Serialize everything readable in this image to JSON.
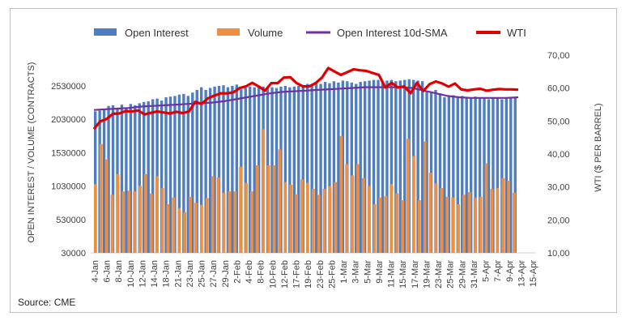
{
  "chart_data": {
    "type": "bar",
    "source": "Source: CME",
    "ylabel_left": "OPEN INTEREST / VOLUME (CONTRACTS)",
    "ylabel_right": "WTI ($ PER BARREL)",
    "left_ticks": [
      "30000",
      "530000",
      "1030000",
      "1530000",
      "2030000",
      "2530000"
    ],
    "left_range": [
      30000,
      2530000
    ],
    "right_ticks": [
      "10,00",
      "20,00",
      "30,00",
      "40,00",
      "50,00",
      "60,00",
      "70,00"
    ],
    "right_range": [
      10,
      70
    ],
    "x_tick_labels": [
      "4-Jan",
      "6-Jan",
      "8-Jan",
      "10-Jan",
      "12-Jan",
      "14-Jan",
      "18-Jan",
      "21-Jan",
      "23-Jan",
      "25-Jan",
      "27-Jan",
      "29-Jan",
      "2-Feb",
      "4-Feb",
      "8-Feb",
      "10-Feb",
      "12-Feb",
      "17-Feb",
      "19-Feb",
      "23-Feb",
      "25-Feb",
      "1-Mar",
      "3-Mar",
      "5-Mar",
      "9-Mar",
      "11-Mar",
      "15-Mar",
      "17-Mar",
      "19-Mar",
      "23-Mar",
      "25-Mar",
      "29-Mar",
      "31-Mar",
      "5-Apr",
      "7-Apr",
      "9-Apr",
      "13-Apr",
      "15-Apr"
    ],
    "legend": [
      {
        "name": "Open Interest",
        "color": "#4e7ec1",
        "marker": "bar"
      },
      {
        "name": "Volume",
        "color": "#ed8f43",
        "marker": "bar"
      },
      {
        "name": "Open Interest 10d-SMA",
        "color": "#7030a0",
        "marker": "line"
      },
      {
        "name": "WTI",
        "color": "#e00000",
        "marker": "line"
      }
    ],
    "series": [
      {
        "name": "Open Interest",
        "color": "#4e7ec1",
        "values": [
          2150000,
          2160000,
          2180000,
          2230000,
          2240000,
          2200000,
          2250000,
          2200000,
          2260000,
          2240000,
          2270000,
          2290000,
          2300000,
          2330000,
          2340000,
          2310000,
          2360000,
          2370000,
          2380000,
          2400000,
          2410000,
          2380000,
          2430000,
          2470000,
          2510000,
          2470000,
          2500000,
          2520000,
          2530000,
          2540000,
          2510000,
          2530000,
          2550000,
          2480000,
          2500000,
          2520000,
          2510000,
          2530000,
          2520000,
          2500000,
          2510000,
          2500000,
          2520000,
          2530000,
          2510000,
          2520000,
          2530000,
          2540000,
          2560000,
          2550000,
          2580000,
          2560000,
          2590000,
          2570000,
          2600000,
          2580000,
          2610000,
          2600000,
          2580000,
          2560000,
          2590000,
          2600000,
          2610000,
          2620000,
          2620000,
          2600000,
          2610000,
          2620000,
          2600000,
          2610000,
          2620000,
          2630000,
          2620000,
          2610000,
          2600000,
          2450000,
          2440000,
          2470000,
          2420000,
          2360000,
          2380000,
          2390000,
          2370000,
          2380000,
          2360000,
          2350000,
          2370000,
          2360000,
          2340000,
          2330000,
          2350000,
          2340000,
          2330000,
          2340000,
          2350000,
          2350000
        ]
      },
      {
        "name": "Volume",
        "color": "#ed8f43",
        "values": [
          1060000,
          1660000,
          1430000,
          900000,
          1210000,
          950000,
          960000,
          950000,
          1040000,
          1210000,
          920000,
          1180000,
          1000000,
          760000,
          860000,
          700000,
          640000,
          870000,
          780000,
          750000,
          850000,
          1180000,
          1160000,
          930000,
          950000,
          950000,
          1320000,
          1080000,
          950000,
          1340000,
          1880000,
          1340000,
          1340000,
          1580000,
          1090000,
          1050000,
          910000,
          1130000,
          1080000,
          990000,
          900000,
          990000,
          1030000,
          1090000,
          1780000,
          1360000,
          1190000,
          1360000,
          1150000,
          1030000,
          760000,
          860000,
          880000,
          1060000,
          920000,
          820000,
          1740000,
          1480000,
          820000,
          1700000,
          1230000,
          1070000,
          1000000,
          870000,
          860000,
          760000,
          900000,
          940000,
          850000,
          870000,
          1370000,
          990000,
          1000000,
          1150000,
          1110000,
          930000
        ]
      },
      {
        "name": "Open Interest 10d-SMA",
        "color": "#7030a0",
        "values": [
          2170000,
          2180000,
          2190000,
          2200000,
          2220000,
          2230000,
          2240000,
          2250000,
          2260000,
          2270000,
          2280000,
          2300000,
          2330000,
          2360000,
          2390000,
          2420000,
          2440000,
          2450000,
          2460000,
          2470000,
          2480000,
          2490000,
          2500000,
          2510000,
          2510000,
          2510000,
          2510000,
          2500000,
          2460000,
          2420000,
          2380000,
          2360000,
          2350000,
          2350000,
          2350000,
          2350000,
          2360000
        ]
      },
      {
        "name": "WTI",
        "color": "#e00000",
        "values": [
          47.6,
          49.9,
          50.6,
          52.2,
          52.3,
          53.0,
          52.9,
          53.2,
          52.0,
          52.5,
          52.9,
          52.6,
          52.3,
          52.8,
          52.4,
          52.9,
          55.8,
          55.2,
          56.9,
          57.7,
          58.4,
          58.4,
          58.7,
          60.0,
          60.5,
          61.6,
          60.5,
          59.2,
          61.5,
          61.5,
          63.2,
          63.3,
          61.5,
          60.5,
          60.5,
          61.5,
          63.2,
          66.1,
          65.0,
          64.0,
          64.8,
          65.7,
          65.4,
          65.2,
          64.6,
          64.0,
          60.2,
          61.6,
          60.2,
          60.5,
          58.4,
          61.6,
          59.1,
          61.2,
          62.0,
          61.4,
          60.4,
          61.4,
          59.6,
          59.3,
          59.6,
          59.8,
          59.2,
          59.5,
          59.7,
          59.6,
          59.6,
          59.5
        ]
      }
    ]
  }
}
